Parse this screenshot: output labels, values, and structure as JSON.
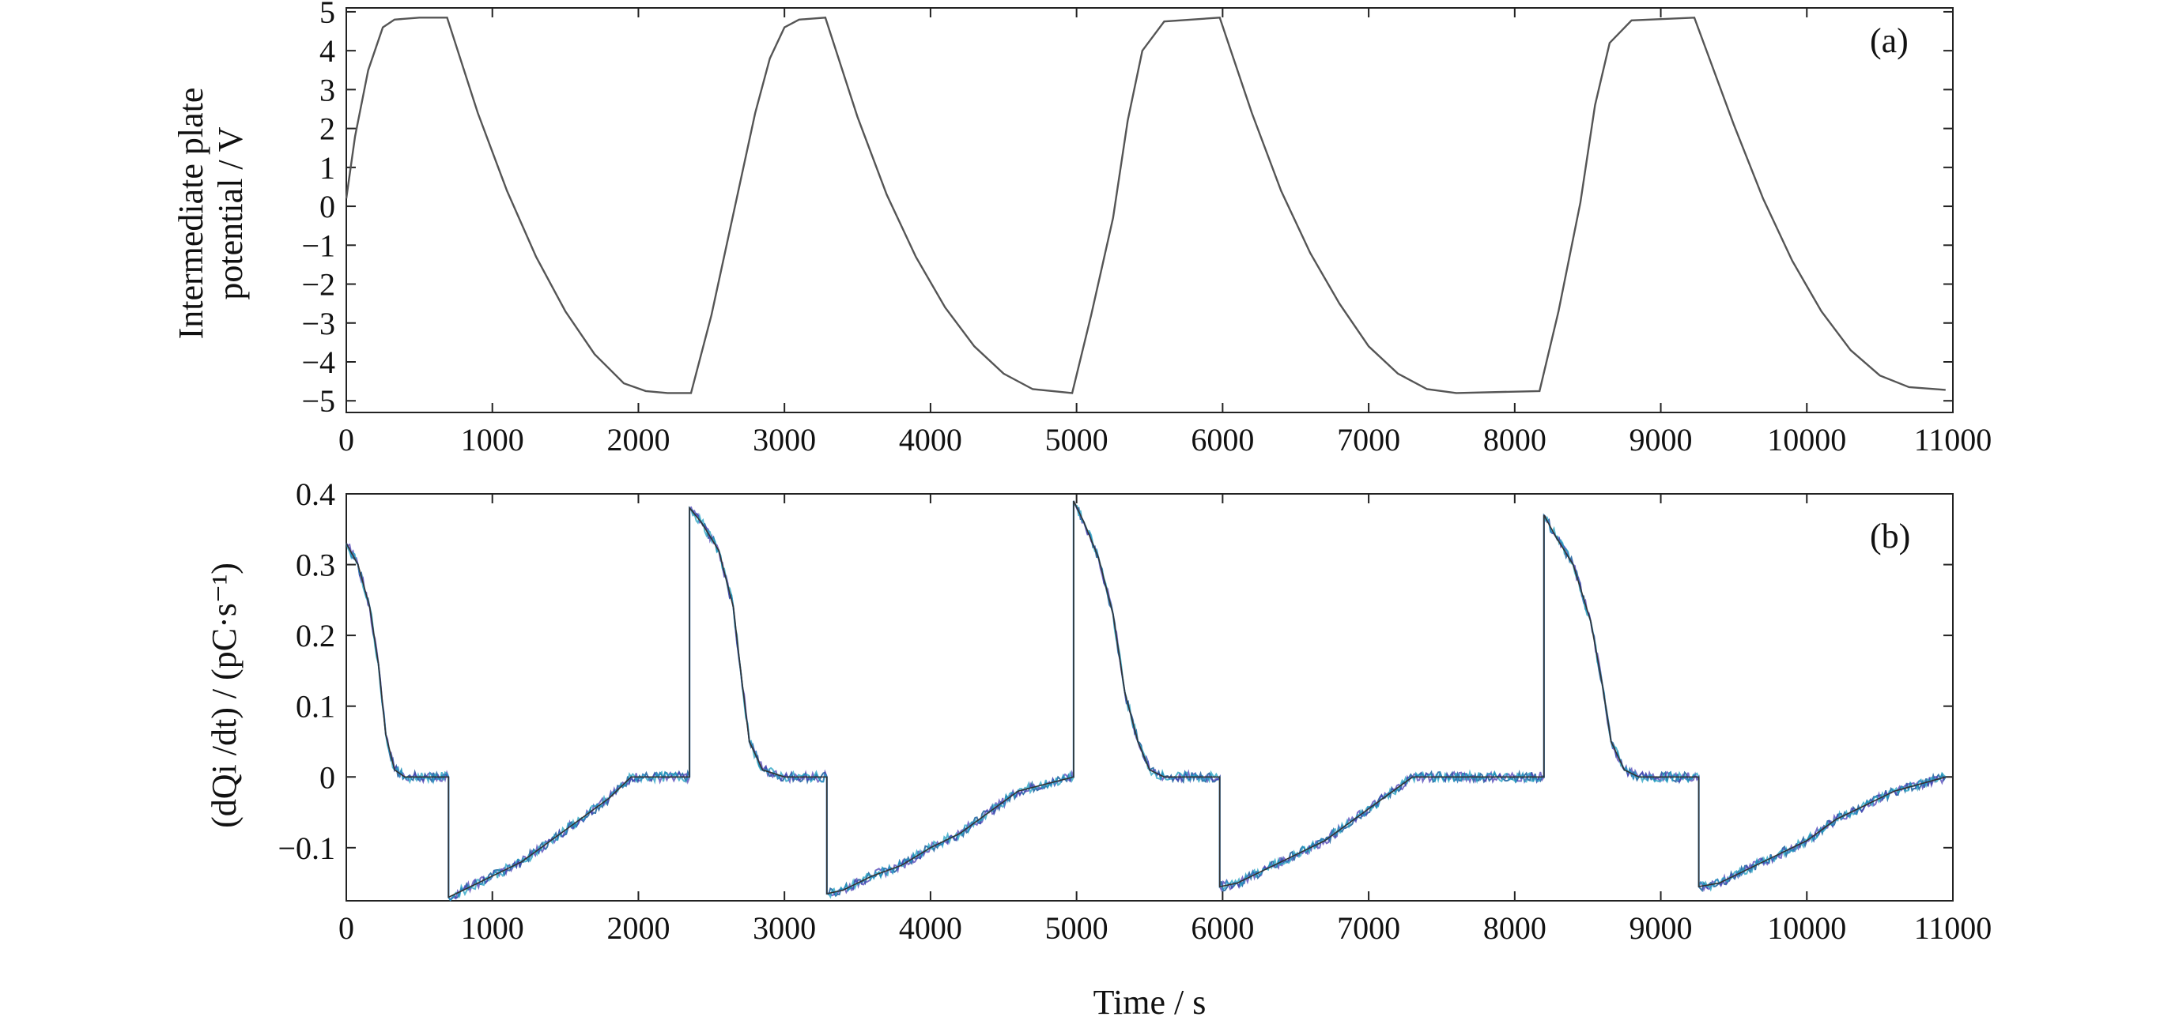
{
  "chart_data": [
    {
      "panel": "(a)",
      "type": "line",
      "ylabel_lines": [
        "Intermediate plate",
        "potential / V"
      ],
      "xlim": [
        0,
        11000
      ],
      "ylim": [
        -5.3,
        5.1
      ],
      "xticks": [
        "0",
        "1000",
        "2000",
        "3000",
        "4000",
        "5000",
        "6000",
        "7000",
        "8000",
        "9000",
        "10000",
        "11000"
      ],
      "xtick_values": [
        0,
        1000,
        2000,
        3000,
        4000,
        5000,
        6000,
        7000,
        8000,
        9000,
        10000,
        11000
      ],
      "yticks": [
        "−5",
        "−4",
        "−3",
        "−2",
        "−1",
        "0",
        "1",
        "2",
        "3",
        "4",
        "5"
      ],
      "ytick_values": [
        -5,
        -4,
        -3,
        -2,
        -1,
        0,
        1,
        2,
        3,
        4,
        5
      ],
      "line_color": "#555555",
      "grid": false,
      "x": [
        0,
        60,
        150,
        250,
        330,
        500,
        690,
        900,
        1100,
        1300,
        1500,
        1700,
        1900,
        2050,
        2200,
        2360,
        2500,
        2650,
        2800,
        2900,
        3000,
        3100,
        3280,
        3500,
        3700,
        3900,
        4100,
        4300,
        4500,
        4700,
        4970,
        5100,
        5250,
        5350,
        5450,
        5600,
        5980,
        6200,
        6400,
        6600,
        6800,
        7000,
        7200,
        7400,
        7600,
        8170,
        8300,
        8450,
        8550,
        8650,
        8800,
        9230,
        9500,
        9700,
        9900,
        10100,
        10300,
        10500,
        10700,
        10950
      ],
      "y": [
        0.2,
        1.8,
        3.5,
        4.6,
        4.8,
        4.85,
        4.85,
        2.4,
        0.4,
        -1.3,
        -2.7,
        -3.8,
        -4.55,
        -4.75,
        -4.8,
        -4.8,
        -2.8,
        -0.2,
        2.4,
        3.8,
        4.6,
        4.8,
        4.85,
        2.3,
        0.3,
        -1.3,
        -2.6,
        -3.6,
        -4.3,
        -4.7,
        -4.8,
        -2.8,
        -0.3,
        2.2,
        4.0,
        4.75,
        4.85,
        2.4,
        0.4,
        -1.2,
        -2.5,
        -3.6,
        -4.3,
        -4.7,
        -4.8,
        -4.75,
        -2.7,
        0.1,
        2.6,
        4.2,
        4.78,
        4.85,
        2.1,
        0.2,
        -1.4,
        -2.7,
        -3.7,
        -4.35,
        -4.65,
        -4.72
      ]
    },
    {
      "panel": "(b)",
      "type": "line",
      "ylabel": "(dQi /dt) / (pC·s⁻¹)",
      "xlabel": "Time / s",
      "xlim": [
        0,
        11000
      ],
      "ylim": [
        -0.175,
        0.4
      ],
      "xticks": [
        "0",
        "1000",
        "2000",
        "3000",
        "4000",
        "5000",
        "6000",
        "7000",
        "8000",
        "9000",
        "10000",
        "11000"
      ],
      "xtick_values": [
        0,
        1000,
        2000,
        3000,
        4000,
        5000,
        6000,
        7000,
        8000,
        9000,
        10000,
        11000
      ],
      "yticks": [
        "−0.1",
        "0",
        "0.1",
        "0.2",
        "0.3",
        "0.4"
      ],
      "ytick_values": [
        -0.1,
        0,
        0.1,
        0.2,
        0.3,
        0.4
      ],
      "line_colors": [
        "#2f6fa8",
        "#4c3fb5",
        "#1f9fc0"
      ],
      "grid": false,
      "x": [
        0,
        80,
        160,
        220,
        270,
        330,
        400,
        550,
        700,
        700,
        800,
        1000,
        1200,
        1400,
        1600,
        1800,
        1950,
        2100,
        2350,
        2350,
        2430,
        2550,
        2650,
        2700,
        2760,
        2850,
        3000,
        3290,
        3290,
        3400,
        3600,
        3800,
        4000,
        4200,
        4400,
        4600,
        4980,
        4980,
        5050,
        5150,
        5250,
        5330,
        5420,
        5500,
        5600,
        5980,
        5980,
        6100,
        6300,
        6500,
        6700,
        6900,
        7100,
        7300,
        7500,
        8200,
        8200,
        8280,
        8400,
        8520,
        8600,
        8660,
        8750,
        8850,
        9260,
        9260,
        9400,
        9600,
        9800,
        10000,
        10200,
        10400,
        10600,
        10950
      ],
      "y": [
        0.33,
        0.3,
        0.24,
        0.16,
        0.06,
        0.01,
        0.0,
        0.0,
        0.0,
        -0.17,
        -0.16,
        -0.14,
        -0.12,
        -0.09,
        -0.06,
        -0.03,
        0.0,
        0.0,
        0.0,
        0.38,
        0.36,
        0.32,
        0.24,
        0.15,
        0.05,
        0.01,
        0.0,
        0.0,
        -0.165,
        -0.16,
        -0.14,
        -0.125,
        -0.1,
        -0.08,
        -0.05,
        -0.02,
        0.0,
        0.39,
        0.36,
        0.31,
        0.23,
        0.12,
        0.05,
        0.01,
        0.0,
        0.0,
        -0.155,
        -0.15,
        -0.13,
        -0.11,
        -0.09,
        -0.06,
        -0.03,
        0.0,
        0.0,
        0.0,
        0.37,
        0.34,
        0.3,
        0.22,
        0.13,
        0.05,
        0.01,
        0.0,
        0.0,
        -0.155,
        -0.15,
        -0.13,
        -0.11,
        -0.09,
        -0.06,
        -0.04,
        -0.02,
        0.0
      ]
    }
  ]
}
